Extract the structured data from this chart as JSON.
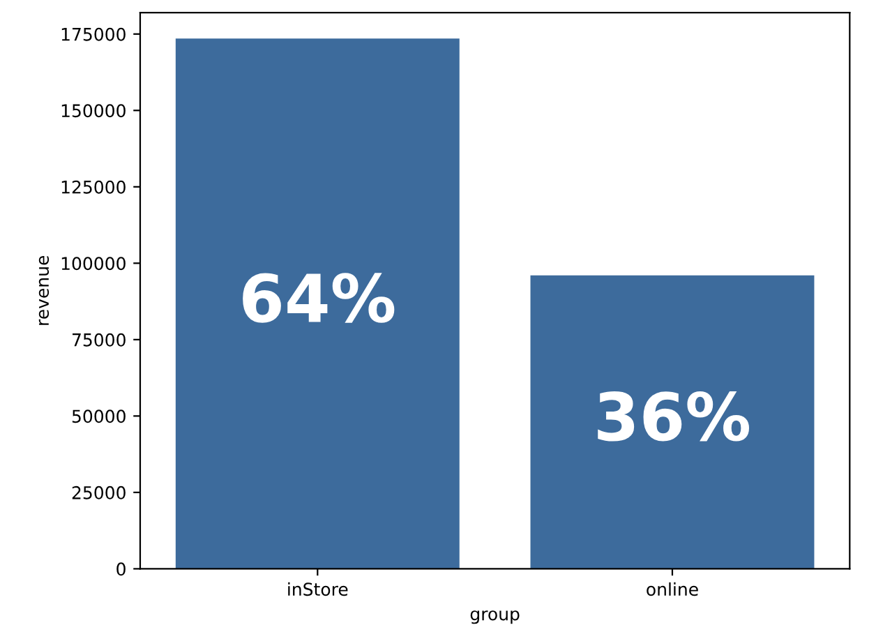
{
  "chart_data": {
    "type": "bar",
    "xlabel": "group",
    "ylabel": "revenue",
    "categories": [
      "inStore",
      "online"
    ],
    "values": [
      173500,
      96000
    ],
    "color": "#3d6b9c",
    "ylim": [
      0,
      182000
    ],
    "yticks": [
      0,
      25000,
      50000,
      75000,
      100000,
      125000,
      150000,
      175000
    ],
    "grid": false,
    "annotations": [
      "64%",
      "36%"
    ]
  }
}
